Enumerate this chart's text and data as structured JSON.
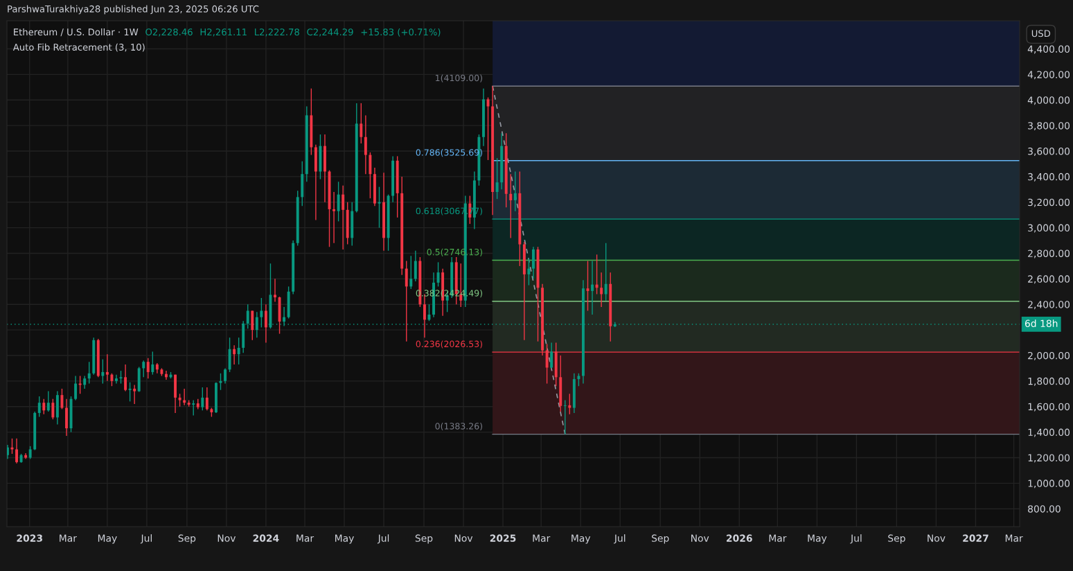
{
  "chart_data": {
    "type": "candlestick",
    "title": "Ethereum / U.S. Dollar · 1W",
    "subtitle": "Auto Fib Retracement (3, 10)",
    "ylabel": "USD",
    "annotations": [
      "ParshwaTurakhiya28 published Jun 23, 2025 06:26 UTC",
      "O2,228.46",
      "H2,261.11",
      "L2,222.78",
      "C2,244.29",
      "+15.83 (+0.71%)"
    ],
    "colors": [
      "#089981",
      "#f23645",
      "#f23645",
      "#089981",
      "#f23645",
      "#089981",
      "#089981",
      "#089981",
      "#f23645",
      "#089981",
      "#f23645",
      "#089981",
      "#f23645",
      "#f23645",
      "#089981",
      "#089981",
      "#f23645",
      "#089981",
      "#089981",
      "#089981",
      "#f23645",
      "#089981",
      "#f23645",
      "#f23645",
      "#089981",
      "#089981",
      "#f23645",
      "#089981",
      "#f23645",
      "#089981",
      "#089981",
      "#f23645",
      "#089981",
      "#f23645",
      "#f23645",
      "#f23645",
      "#089981",
      "#f23645",
      "#f23645",
      "#f23645",
      "#f23645",
      "#089981",
      "#f23645",
      "#089981",
      "#f23645",
      "#f23645",
      "#089981",
      "#089981",
      "#089981",
      "#089981",
      "#f23645",
      "#089981",
      "#089981",
      "#089981",
      "#f23645",
      "#089981",
      "#089981",
      "#f23645",
      "#089981",
      "#f23645",
      "#f23645",
      "#089981",
      "#089981",
      "#089981",
      "#089981",
      "#089981",
      "#089981",
      "#f23645",
      "#f23645",
      "#089981",
      "#f23645",
      "#f23645",
      "#f23645",
      "#089981",
      "#f23645",
      "#f23645",
      "#089981",
      "#089981",
      "#f23645",
      "#f23645",
      "#f23645",
      "#f23645",
      "#089981",
      "#f23645",
      "#089981",
      "#089981",
      "#f23645",
      "#f23645",
      "#f23645",
      "#089981",
      "#089981",
      "#f23645",
      "#f23645",
      "#089981",
      "#089981",
      "#089981",
      "#f23645",
      "#089981",
      "#089981",
      "#f23645",
      "#f23645",
      "#089981",
      "#f23645",
      "#089981",
      "#089981",
      "#089981",
      "#f23645",
      "#f23645",
      "#089981",
      "#089981",
      "#f23645",
      "#f23645",
      "#089981",
      "#f23645",
      "#f23645",
      "#089981",
      "#089981",
      "#f23645",
      "#f23645",
      "#f23645",
      "#089981",
      "#f23645",
      "#f23645",
      "#089981",
      "#f23645",
      "#089981",
      "#089981",
      "#089981",
      "#f23645",
      "#089981",
      "#f23645",
      "#f23645",
      "#089981",
      "#f23645",
      "#089981"
    ],
    "x": [
      "2022-11-28",
      "2022-12-05",
      "2022-12-12",
      "2022-12-19",
      "2022-12-26",
      "2023-01-02",
      "2023-01-09",
      "2023-01-16",
      "2023-01-23",
      "2023-01-30",
      "2023-02-06",
      "2023-02-13",
      "2023-02-20",
      "2023-02-27",
      "2023-03-06",
      "2023-03-13",
      "2023-03-20",
      "2023-03-27",
      "2023-04-03",
      "2023-04-10",
      "2023-04-17",
      "2023-04-24",
      "2023-05-01",
      "2023-05-08",
      "2023-05-15",
      "2023-05-22",
      "2023-05-29",
      "2023-06-05",
      "2023-06-12",
      "2023-06-19",
      "2023-06-26",
      "2023-07-03",
      "2023-07-10",
      "2023-07-17",
      "2023-07-24",
      "2023-07-31",
      "2023-08-07",
      "2023-08-14",
      "2023-08-21",
      "2023-08-28",
      "2023-09-04",
      "2023-09-11",
      "2023-09-18",
      "2023-09-25",
      "2023-10-02",
      "2023-10-09",
      "2023-10-16",
      "2023-10-23",
      "2023-10-30",
      "2023-11-06",
      "2023-11-13",
      "2023-11-20",
      "2023-11-27",
      "2023-12-04",
      "2023-12-11",
      "2023-12-18",
      "2023-12-25",
      "2024-01-01",
      "2024-01-08",
      "2024-01-15",
      "2024-01-22",
      "2024-01-29",
      "2024-02-05",
      "2024-02-12",
      "2024-02-19",
      "2024-02-26",
      "2024-03-04",
      "2024-03-11",
      "2024-03-18",
      "2024-03-25",
      "2024-04-01",
      "2024-04-08",
      "2024-04-15",
      "2024-04-22",
      "2024-04-29",
      "2024-05-06",
      "2024-05-13",
      "2024-05-20",
      "2024-05-27",
      "2024-06-03",
      "2024-06-10",
      "2024-06-17",
      "2024-06-24",
      "2024-07-01",
      "2024-07-08",
      "2024-07-15",
      "2024-07-22",
      "2024-07-29",
      "2024-08-05",
      "2024-08-12",
      "2024-08-19",
      "2024-08-26",
      "2024-09-02",
      "2024-09-09",
      "2024-09-16",
      "2024-09-23",
      "2024-09-30",
      "2024-10-07",
      "2024-10-14",
      "2024-10-21",
      "2024-10-28",
      "2024-11-04",
      "2024-11-11",
      "2024-11-18",
      "2024-11-25",
      "2024-12-02",
      "2024-12-09",
      "2024-12-16",
      "2024-12-23",
      "2024-12-30",
      "2025-01-06",
      "2025-01-13",
      "2025-01-20",
      "2025-01-27",
      "2025-02-03",
      "2025-02-10",
      "2025-02-17",
      "2025-02-24",
      "2025-03-03",
      "2025-03-10",
      "2025-03-17",
      "2025-03-24",
      "2025-03-31",
      "2025-04-07",
      "2025-04-14",
      "2025-04-21",
      "2025-04-28",
      "2025-05-05",
      "2025-05-12",
      "2025-05-19",
      "2025-05-26",
      "2025-06-02",
      "2025-06-09",
      "2025-06-16",
      "2025-06-23"
    ],
    "ohlc": [
      [
        1220,
        1300,
        1190,
        1280
      ],
      [
        1280,
        1350,
        1230,
        1265
      ],
      [
        1265,
        1350,
        1155,
        1165
      ],
      [
        1165,
        1230,
        1160,
        1220
      ],
      [
        1220,
        1235,
        1190,
        1200
      ],
      [
        1200,
        1290,
        1190,
        1265
      ],
      [
        1265,
        1560,
        1260,
        1550
      ],
      [
        1550,
        1680,
        1520,
        1630
      ],
      [
        1630,
        1660,
        1540,
        1570
      ],
      [
        1570,
        1720,
        1560,
        1630
      ],
      [
        1630,
        1660,
        1500,
        1515
      ],
      [
        1515,
        1720,
        1460,
        1690
      ],
      [
        1690,
        1740,
        1580,
        1590
      ],
      [
        1590,
        1660,
        1370,
        1430
      ],
      [
        1430,
        1680,
        1400,
        1660
      ],
      [
        1660,
        1840,
        1650,
        1780
      ],
      [
        1780,
        1840,
        1700,
        1770
      ],
      [
        1770,
        1840,
        1740,
        1820
      ],
      [
        1820,
        1950,
        1780,
        1860
      ],
      [
        1860,
        2140,
        1850,
        2120
      ],
      [
        2120,
        2130,
        1830,
        1840
      ],
      [
        1840,
        1970,
        1780,
        1870
      ],
      [
        1870,
        2010,
        1800,
        1850
      ],
      [
        1850,
        1860,
        1760,
        1800
      ],
      [
        1800,
        1850,
        1780,
        1820
      ],
      [
        1820,
        1880,
        1780,
        1830
      ],
      [
        1830,
        1930,
        1720,
        1730
      ],
      [
        1730,
        1790,
        1640,
        1740
      ],
      [
        1740,
        1770,
        1620,
        1720
      ],
      [
        1720,
        1910,
        1715,
        1900
      ],
      [
        1900,
        1960,
        1830,
        1950
      ],
      [
        1950,
        1980,
        1820,
        1870
      ],
      [
        1870,
        2030,
        1850,
        1930
      ],
      [
        1930,
        1940,
        1860,
        1890
      ],
      [
        1890,
        1900,
        1840,
        1855
      ],
      [
        1855,
        1880,
        1810,
        1830
      ],
      [
        1830,
        1870,
        1820,
        1850
      ],
      [
        1850,
        1850,
        1550,
        1670
      ],
      [
        1670,
        1700,
        1600,
        1650
      ],
      [
        1650,
        1740,
        1610,
        1630
      ],
      [
        1630,
        1650,
        1600,
        1615
      ],
      [
        1615,
        1650,
        1530,
        1625
      ],
      [
        1625,
        1660,
        1580,
        1595
      ],
      [
        1595,
        1750,
        1570,
        1670
      ],
      [
        1670,
        1750,
        1570,
        1580
      ],
      [
        1580,
        1590,
        1520,
        1555
      ],
      [
        1555,
        1790,
        1550,
        1785
      ],
      [
        1785,
        1860,
        1730,
        1800
      ],
      [
        1800,
        1900,
        1780,
        1890
      ],
      [
        1890,
        2140,
        1870,
        2050
      ],
      [
        2050,
        2080,
        1930,
        2010
      ],
      [
        2010,
        2140,
        1930,
        2060
      ],
      [
        2060,
        2270,
        2020,
        2250
      ],
      [
        2250,
        2400,
        2210,
        2350
      ],
      [
        2350,
        2350,
        2120,
        2200
      ],
      [
        2200,
        2340,
        2140,
        2300
      ],
      [
        2300,
        2450,
        2220,
        2350
      ],
      [
        2350,
        2400,
        2100,
        2220
      ],
      [
        2220,
        2720,
        2210,
        2475
      ],
      [
        2475,
        2600,
        2420,
        2455
      ],
      [
        2455,
        2460,
        2170,
        2265
      ],
      [
        2265,
        2380,
        2230,
        2300
      ],
      [
        2300,
        2540,
        2290,
        2500
      ],
      [
        2500,
        2900,
        2480,
        2880
      ],
      [
        2880,
        3290,
        2860,
        3240
      ],
      [
        3240,
        3520,
        3170,
        3420
      ],
      [
        3420,
        3950,
        3360,
        3880
      ],
      [
        3880,
        4090,
        3570,
        3630
      ],
      [
        3630,
        3650,
        3060,
        3440
      ],
      [
        3440,
        3730,
        3380,
        3640
      ],
      [
        3640,
        3730,
        3200,
        3440
      ],
      [
        3440,
        3450,
        2850,
        3145
      ],
      [
        3145,
        3280,
        2880,
        3130
      ],
      [
        3130,
        3360,
        3050,
        3260
      ],
      [
        3260,
        3330,
        2830,
        3140
      ],
      [
        3140,
        3200,
        2870,
        2920
      ],
      [
        2920,
        3200,
        2860,
        3130
      ],
      [
        3130,
        3975,
        3120,
        3815
      ],
      [
        3815,
        3975,
        3660,
        3710
      ],
      [
        3710,
        3880,
        3420,
        3570
      ],
      [
        3570,
        3590,
        3230,
        3420
      ],
      [
        3420,
        3470,
        3170,
        3190
      ],
      [
        3190,
        3320,
        3000,
        3200
      ],
      [
        3200,
        3430,
        2820,
        2920
      ],
      [
        2920,
        3260,
        2820,
        3250
      ],
      [
        3250,
        3560,
        3200,
        3525
      ],
      [
        3525,
        3560,
        3080,
        3270
      ],
      [
        3270,
        3400,
        2630,
        2680
      ],
      [
        2680,
        2740,
        2110,
        2540
      ],
      [
        2540,
        2780,
        2520,
        2600
      ],
      [
        2600,
        2820,
        2580,
        2740
      ],
      [
        2740,
        2770,
        2380,
        2400
      ],
      [
        2400,
        2480,
        2140,
        2280
      ],
      [
        2280,
        2400,
        2270,
        2320
      ],
      [
        2320,
        2650,
        2300,
        2570
      ],
      [
        2570,
        2730,
        2540,
        2650
      ],
      [
        2650,
        2680,
        2310,
        2430
      ],
      [
        2430,
        2500,
        2340,
        2470
      ],
      [
        2470,
        2770,
        2450,
        2730
      ],
      [
        2730,
        2770,
        2400,
        2480
      ],
      [
        2480,
        2720,
        2380,
        2430
      ],
      [
        2430,
        3250,
        2380,
        3190
      ],
      [
        3190,
        3250,
        3030,
        3080
      ],
      [
        3080,
        3440,
        2990,
        3370
      ],
      [
        3370,
        3730,
        3330,
        3710
      ],
      [
        3710,
        4090,
        3640,
        4005
      ],
      [
        4005,
        4020,
        3530,
        3950
      ],
      [
        3950,
        4109,
        3100,
        3280
      ],
      [
        3280,
        3545,
        3225,
        3355
      ],
      [
        3355,
        3740,
        3300,
        3640
      ],
      [
        3640,
        3740,
        3160,
        3265
      ],
      [
        3265,
        3420,
        2920,
        3215
      ],
      [
        3215,
        3440,
        3130,
        3270
      ],
      [
        3270,
        3440,
        2700,
        2870
      ],
      [
        2870,
        2890,
        2120,
        2635
      ],
      [
        2635,
        2760,
        2550,
        2680
      ],
      [
        2680,
        2850,
        2600,
        2830
      ],
      [
        2830,
        2850,
        2110,
        2530
      ],
      [
        2530,
        2560,
        2000,
        2040
      ],
      [
        2040,
        2090,
        1780,
        1905
      ],
      [
        1905,
        2100,
        1900,
        2030
      ],
      [
        2030,
        2100,
        1760,
        1830
      ],
      [
        1830,
        2000,
        1560,
        1605
      ],
      [
        1605,
        1650,
        1383.26,
        1610
      ],
      [
        1610,
        1700,
        1540,
        1590
      ],
      [
        1590,
        1860,
        1550,
        1815
      ],
      [
        1815,
        1860,
        1760,
        1840
      ],
      [
        1840,
        2590,
        1780,
        2525
      ],
      [
        2525,
        2740,
        2350,
        2505
      ],
      [
        2505,
        2740,
        2320,
        2555
      ],
      [
        2555,
        2790,
        2480,
        2530
      ],
      [
        2530,
        2650,
        2380,
        2480
      ],
      [
        2480,
        2880,
        2430,
        2560
      ],
      [
        2560,
        2650,
        2110,
        2228.46
      ],
      [
        2228.46,
        2261.11,
        2222.78,
        2244.29
      ]
    ],
    "series": [
      {
        "type": "line",
        "x": [
          "2024-12-16",
          "2025-04-07"
        ],
        "values": [
          4109,
          1383.26
        ],
        "color": "#9598a1",
        "line_style": "dashed"
      }
    ],
    "bands": [
      {
        "axis": "y",
        "from": 4109,
        "to": 4620,
        "color": "#131a33"
      },
      {
        "axis": "y",
        "from": 3525.69,
        "to": 4109,
        "color": "#222224"
      },
      {
        "axis": "y",
        "from": 3067.77,
        "to": 3525.69,
        "color": "#1c2a35"
      },
      {
        "axis": "y",
        "from": 2746.13,
        "to": 3067.77,
        "color": "#0c2623"
      },
      {
        "axis": "y",
        "from": 2424.49,
        "to": 2746.13,
        "color": "#1b2a1d"
      },
      {
        "axis": "y",
        "from": 2026.53,
        "to": 2424.49,
        "color": "#222a22"
      },
      {
        "axis": "y",
        "from": 1383.26,
        "to": 2026.53,
        "color": "#321619"
      }
    ],
    "ref_lines": [
      {
        "axis": "y",
        "value": 4109,
        "label": "1(4109.00)",
        "color": "#787b86"
      },
      {
        "axis": "y",
        "value": 3525.69,
        "label": "0.786(3525.69)",
        "color": "#64b5f6"
      },
      {
        "axis": "y",
        "value": 3067.77,
        "label": "0.618(3067.77)",
        "color": "#089981"
      },
      {
        "axis": "y",
        "value": 2746.13,
        "label": "0.5(2746.13)",
        "color": "#4caf50"
      },
      {
        "axis": "y",
        "value": 2424.49,
        "label": "0.382(2424.49)",
        "color": "#81c784"
      },
      {
        "axis": "y",
        "value": 2026.53,
        "label": "0.236(2026.53)",
        "color": "#f23645"
      },
      {
        "axis": "y",
        "value": 1383.26,
        "label": "0(1383.26)",
        "color": "#787b86"
      },
      {
        "axis": "y",
        "value": 2244.29,
        "label": "6d 18h",
        "color": "#089981",
        "line_style": "dotted"
      }
    ],
    "xlim": [
      "2022-11-27",
      "2027-03-10"
    ],
    "xticks": [
      {
        "value": "2023-01-01",
        "label": "2023"
      },
      {
        "value": "2023-03-01",
        "label": "Mar"
      },
      {
        "value": "2023-05-01",
        "label": "May"
      },
      {
        "value": "2023-07-01",
        "label": "Jul"
      },
      {
        "value": "2023-09-01",
        "label": "Sep"
      },
      {
        "value": "2023-11-01",
        "label": "Nov"
      },
      {
        "value": "2024-01-01",
        "label": "2024"
      },
      {
        "value": "2024-03-01",
        "label": "Mar"
      },
      {
        "value": "2024-05-01",
        "label": "May"
      },
      {
        "value": "2024-07-01",
        "label": "Jul"
      },
      {
        "value": "2024-09-01",
        "label": "Sep"
      },
      {
        "value": "2024-11-01",
        "label": "Nov"
      },
      {
        "value": "2025-01-01",
        "label": "2025"
      },
      {
        "value": "2025-03-01",
        "label": "Mar"
      },
      {
        "value": "2025-05-01",
        "label": "May"
      },
      {
        "value": "2025-07-01",
        "label": "Jul"
      },
      {
        "value": "2025-09-01",
        "label": "Sep"
      },
      {
        "value": "2025-11-01",
        "label": "Nov"
      },
      {
        "value": "2026-01-01",
        "label": "2026"
      },
      {
        "value": "2026-03-01",
        "label": "Mar"
      },
      {
        "value": "2026-05-01",
        "label": "May"
      },
      {
        "value": "2026-07-01",
        "label": "Jul"
      },
      {
        "value": "2026-09-01",
        "label": "Sep"
      },
      {
        "value": "2026-11-01",
        "label": "Nov"
      },
      {
        "value": "2027-01-01",
        "label": "2027"
      },
      {
        "value": "2027-03-01",
        "label": "Mar"
      }
    ],
    "ylim": [
      660,
      4620
    ],
    "yticks": [
      {
        "value": 800,
        "label": "800.00"
      },
      {
        "value": 1000,
        "label": "1,000.00"
      },
      {
        "value": 1200,
        "label": "1,200.00"
      },
      {
        "value": 1400,
        "label": "1,400.00"
      },
      {
        "value": 1600,
        "label": "1,600.00"
      },
      {
        "value": 1800,
        "label": "1,800.00"
      },
      {
        "value": 2000,
        "label": "2,000.00"
      },
      {
        "value": 2200,
        "label": null
      },
      {
        "value": 2400,
        "label": "2,400.00"
      },
      {
        "value": 2600,
        "label": "2,600.00"
      },
      {
        "value": 2800,
        "label": "2,800.00"
      },
      {
        "value": 3000,
        "label": "3,000.00"
      },
      {
        "value": 3200,
        "label": "3,200.00"
      },
      {
        "value": 3400,
        "label": "3,400.00"
      },
      {
        "value": 3600,
        "label": "3,600.00"
      },
      {
        "value": 3800,
        "label": "3,800.00"
      },
      {
        "value": 4000,
        "label": "4,000.00"
      },
      {
        "value": 4200,
        "label": "4,200.00"
      },
      {
        "value": 4400,
        "label": "4,400.00"
      }
    ],
    "grid": true
  }
}
